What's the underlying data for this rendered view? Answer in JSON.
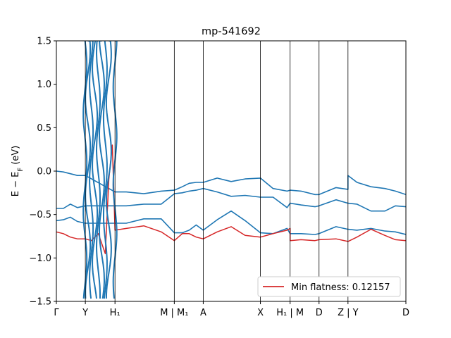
{
  "chart_data": {
    "type": "line",
    "title": "mp-541692",
    "xlabel": "",
    "ylabel": "E − E_F (eV)",
    "ylim": [
      -1.5,
      1.5
    ],
    "xlim": [
      0,
      1
    ],
    "yticks": [
      "−1.5",
      "−1.0",
      "−0.5",
      "0.0",
      "0.5",
      "1.0",
      "1.5"
    ],
    "ytick_values": [
      -1.5,
      -1.0,
      -0.5,
      0.0,
      0.5,
      1.0,
      1.5
    ],
    "xticks": [
      {
        "label": "Γ",
        "pos": 0.0
      },
      {
        "label": "Y",
        "pos": 0.0829
      },
      {
        "label": "H₁",
        "pos": 0.1677
      },
      {
        "label": "M | M₁",
        "pos": 0.3374
      },
      {
        "label": "A",
        "pos": 0.4202
      },
      {
        "label": "X",
        "pos": 0.5838
      },
      {
        "label": "H₁ | M",
        "pos": 0.6687
      },
      {
        "label": "D",
        "pos": 0.7515
      },
      {
        "label": "Z | Y",
        "pos": 0.8343
      },
      {
        "label": "D",
        "pos": 1.0
      }
    ],
    "grid": false,
    "legend": {
      "position": "lower-right",
      "entries": [
        "Min flatness: 0.12157"
      ]
    },
    "colors": {
      "bands": "#1f77b4",
      "flat_band": "#d62728"
    },
    "series": [
      {
        "color": "#1f77b4",
        "x": [
          0,
          0.02,
          0.04,
          0.06,
          0.083,
          0.1677,
          0.2,
          0.25,
          0.3,
          0.3374,
          0.36,
          0.38,
          0.4,
          0.4202,
          0.46,
          0.5,
          0.54,
          0.5838,
          0.62,
          0.66,
          0.6687,
          0.7,
          0.74,
          0.7515,
          0.8,
          0.8343,
          0.8343,
          0.86,
          0.9,
          0.94,
          0.97,
          1.0
        ],
        "values": [
          0.0,
          -0.01,
          -0.03,
          -0.05,
          -0.05,
          -0.24,
          -0.24,
          -0.26,
          -0.23,
          -0.22,
          -0.18,
          -0.14,
          -0.13,
          -0.13,
          -0.08,
          -0.12,
          -0.09,
          -0.08,
          -0.2,
          -0.23,
          -0.22,
          -0.23,
          -0.27,
          -0.27,
          -0.19,
          -0.21,
          -0.05,
          -0.13,
          -0.18,
          -0.2,
          -0.23,
          -0.27
        ]
      },
      {
        "color": "#1f77b4",
        "x": [
          0,
          0.02,
          0.04,
          0.06,
          0.083,
          0.1677,
          0.2,
          0.25,
          0.3,
          0.3374,
          0.36,
          0.38,
          0.4,
          0.4202,
          0.46,
          0.5,
          0.54,
          0.5838,
          0.62,
          0.66,
          0.6687,
          0.7,
          0.74,
          0.7515,
          0.8,
          0.8343,
          0.8343,
          0.86,
          0.9,
          0.94,
          0.97,
          1.0
        ],
        "values": [
          -0.43,
          -0.43,
          -0.38,
          -0.42,
          -0.4,
          -0.4,
          -0.4,
          -0.38,
          -0.38,
          -0.26,
          -0.25,
          -0.23,
          -0.22,
          -0.2,
          -0.24,
          -0.29,
          -0.28,
          -0.3,
          -0.3,
          -0.42,
          -0.37,
          -0.39,
          -0.41,
          -0.4,
          -0.33,
          -0.37,
          -0.37,
          -0.38,
          -0.46,
          -0.46,
          -0.4,
          -0.41
        ]
      },
      {
        "color": "#1f77b4",
        "x": [
          0,
          0.02,
          0.04,
          0.06,
          0.083,
          0.1677,
          0.2,
          0.25,
          0.3,
          0.3374,
          0.36,
          0.38,
          0.4,
          0.4202,
          0.46,
          0.5,
          0.54,
          0.5838,
          0.62,
          0.66,
          0.6687,
          0.7,
          0.74,
          0.7515,
          0.8,
          0.8343,
          0.8343,
          0.86,
          0.9,
          0.94,
          0.97,
          1.0
        ],
        "values": [
          -0.57,
          -0.56,
          -0.53,
          -0.58,
          -0.6,
          -0.6,
          -0.6,
          -0.55,
          -0.55,
          -0.71,
          -0.71,
          -0.68,
          -0.62,
          -0.68,
          -0.56,
          -0.46,
          -0.57,
          -0.71,
          -0.72,
          -0.66,
          -0.72,
          -0.72,
          -0.73,
          -0.72,
          -0.64,
          -0.67,
          -0.67,
          -0.68,
          -0.66,
          -0.69,
          -0.7,
          -0.73
        ]
      },
      {
        "color": "#d62728",
        "flat": true,
        "x": [
          0,
          0.02,
          0.04,
          0.06,
          0.083,
          0.1,
          0.12,
          0.14,
          0.15,
          0.16,
          0.1677,
          0.2,
          0.25,
          0.3,
          0.3374,
          0.36,
          0.38,
          0.4,
          0.4202,
          0.46,
          0.5,
          0.54,
          0.5838,
          0.62,
          0.66,
          0.6687,
          0.6687,
          0.7,
          0.74,
          0.7515,
          0.8,
          0.8343,
          0.8343,
          0.86,
          0.9,
          0.94,
          0.97,
          1.0
        ],
        "values": [
          -0.7,
          -0.72,
          -0.76,
          -0.78,
          -0.78,
          -0.8,
          -0.72,
          -0.95,
          -0.1,
          0.3,
          -0.68,
          -0.66,
          -0.63,
          -0.7,
          -0.8,
          -0.72,
          -0.72,
          -0.76,
          -0.78,
          -0.7,
          -0.64,
          -0.74,
          -0.76,
          -0.72,
          -0.68,
          -0.66,
          -0.8,
          -0.79,
          -0.8,
          -0.79,
          -0.78,
          -0.81,
          -0.81,
          -0.76,
          -0.67,
          -0.74,
          -0.79,
          -0.8
        ]
      }
    ]
  }
}
